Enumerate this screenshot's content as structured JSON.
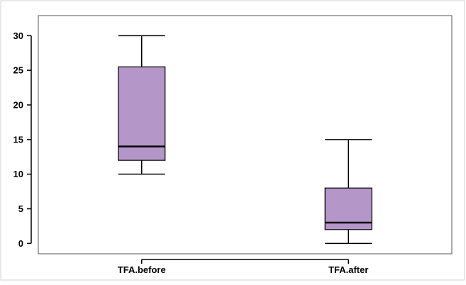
{
  "chart_data": {
    "type": "boxplot",
    "title": "",
    "xlabel": "",
    "ylabel": "",
    "ylim": [
      -1.5,
      32.9
    ],
    "y_ticks": [
      0,
      5,
      10,
      15,
      20,
      25,
      30
    ],
    "grid": false,
    "legend": "none",
    "categories": [
      "TFA.before",
      "TFA.after"
    ],
    "boxes": [
      {
        "category": "TFA.before",
        "whisker_low": 10,
        "q1": 12,
        "median": 14,
        "q3": 25.5,
        "whisker_high": 30
      },
      {
        "category": "TFA.after",
        "whisker_low": 0,
        "q1": 2,
        "median": 3,
        "q3": 8,
        "whisker_high": 15
      }
    ],
    "colors": {
      "box_fill": "#b596c8",
      "box_stroke": "#000000",
      "axis": "#000000",
      "frame": "#555555"
    }
  }
}
